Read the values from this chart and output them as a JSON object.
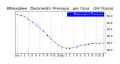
{
  "title": "Milwaukee   Barometric Pressure   per Hour   (24 Hours)",
  "bg_color": "#ffffff",
  "plot_bg": "#ffffff",
  "line_color": "#0000ff",
  "grid_color": "#aaaaaa",
  "text_color": "#000000",
  "legend_color": "#0000ff",
  "hours": [
    0,
    1,
    2,
    3,
    4,
    5,
    6,
    7,
    8,
    9,
    10,
    11,
    12,
    13,
    14,
    15,
    16,
    17,
    18,
    19,
    20,
    21,
    22,
    23
  ],
  "pressure": [
    30.05,
    30.02,
    29.98,
    29.91,
    29.83,
    29.74,
    29.65,
    29.55,
    29.44,
    29.33,
    29.22,
    29.14,
    29.08,
    29.05,
    29.04,
    29.06,
    29.09,
    29.12,
    29.15,
    29.17,
    29.18,
    29.19,
    29.19,
    29.2
  ],
  "ylim": [
    28.9,
    30.15
  ],
  "yticks": [
    29.0,
    29.2,
    29.4,
    29.6,
    29.8,
    30.0
  ],
  "xtick_labels": [
    "12a",
    "1",
    "2",
    "3",
    "4",
    "5",
    "6",
    "7",
    "8",
    "9",
    "10",
    "11",
    "12p",
    "1",
    "2",
    "3",
    "4",
    "5",
    "6",
    "7",
    "8",
    "9",
    "10",
    "11"
  ],
  "grid_vlines": [
    0,
    3,
    6,
    9,
    12,
    15,
    18,
    21,
    23
  ],
  "title_fontsize": 4.0,
  "tick_fontsize": 3.0,
  "legend_label": "Barometric Pressure",
  "legend_fontsize": 3.0
}
